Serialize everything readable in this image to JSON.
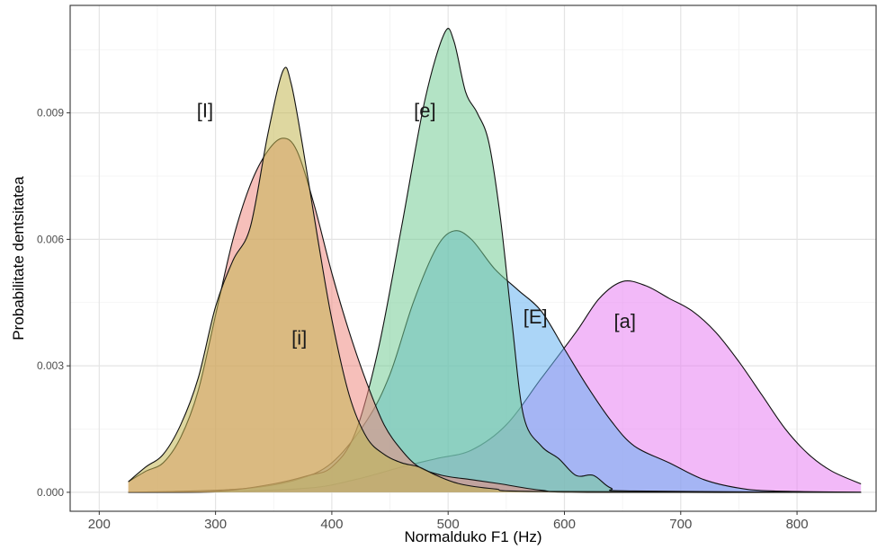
{
  "chart_data": {
    "type": "area",
    "title": "",
    "xlabel": "Normalduko F1 (Hz)",
    "ylabel": "Probabilitate dentsitatea",
    "xlim": [
      175,
      868
    ],
    "ylim": [
      -0.00045,
      0.01155
    ],
    "x_ticks": [
      200,
      300,
      400,
      500,
      600,
      700,
      800
    ],
    "x_tick_labels": [
      "200",
      "300",
      "400",
      "500",
      "600",
      "700",
      "800"
    ],
    "y_ticks": [
      0.0,
      0.003,
      0.006,
      0.009
    ],
    "y_tick_labels": [
      "0.000",
      "0.003",
      "0.006",
      "0.009"
    ],
    "grid": true,
    "legend": "none",
    "series": [
      {
        "name": "[a]",
        "color": "#e77ff2",
        "label_at": [
          652,
          0.0039
        ],
        "points": [
          [
            225,
            0.0
          ],
          [
            300,
            1e-05
          ],
          [
            380,
            0.0001
          ],
          [
            420,
            0.0003
          ],
          [
            460,
            0.0006
          ],
          [
            490,
            0.0008
          ],
          [
            520,
            0.001
          ],
          [
            550,
            0.0016
          ],
          [
            580,
            0.0027
          ],
          [
            610,
            0.0038
          ],
          [
            630,
            0.0046
          ],
          [
            650,
            0.005
          ],
          [
            670,
            0.0049
          ],
          [
            690,
            0.0046
          ],
          [
            710,
            0.0043
          ],
          [
            730,
            0.0038
          ],
          [
            750,
            0.0031
          ],
          [
            770,
            0.0023
          ],
          [
            790,
            0.0015
          ],
          [
            810,
            0.0009
          ],
          [
            830,
            0.0005
          ],
          [
            855,
            0.0002
          ]
        ]
      },
      {
        "name": "[E]",
        "color": "#66b3f0",
        "label_at": [
          575,
          0.004
        ],
        "points": [
          [
            225,
            0.0
          ],
          [
            280,
            3e-05
          ],
          [
            330,
            0.0001
          ],
          [
            370,
            0.0003
          ],
          [
            400,
            0.0007
          ],
          [
            430,
            0.0017
          ],
          [
            450,
            0.0028
          ],
          [
            470,
            0.0045
          ],
          [
            490,
            0.0058
          ],
          [
            505,
            0.0062
          ],
          [
            520,
            0.006
          ],
          [
            540,
            0.0053
          ],
          [
            560,
            0.0048
          ],
          [
            580,
            0.0043
          ],
          [
            600,
            0.0034
          ],
          [
            620,
            0.0025
          ],
          [
            640,
            0.0017
          ],
          [
            660,
            0.0011
          ],
          [
            690,
            0.0007
          ],
          [
            720,
            0.0003
          ],
          [
            750,
            0.0001
          ],
          [
            780,
            3e-05
          ],
          [
            855,
            0.0
          ]
        ]
      },
      {
        "name": "[e]",
        "color": "#74cc95",
        "label_at": [
          480,
          0.0089
        ],
        "points": [
          [
            225,
            0.0
          ],
          [
            300,
            2e-05
          ],
          [
            350,
            0.0002
          ],
          [
            380,
            0.0004
          ],
          [
            400,
            0.0006
          ],
          [
            420,
            0.0014
          ],
          [
            440,
            0.0034
          ],
          [
            460,
            0.0063
          ],
          [
            480,
            0.0093
          ],
          [
            497,
            0.0109
          ],
          [
            505,
            0.0107
          ],
          [
            515,
            0.0095
          ],
          [
            525,
            0.009
          ],
          [
            535,
            0.0083
          ],
          [
            545,
            0.0065
          ],
          [
            555,
            0.004
          ],
          [
            565,
            0.0018
          ],
          [
            580,
            0.0011
          ],
          [
            595,
            0.0008
          ],
          [
            610,
            0.0004
          ],
          [
            625,
            0.0004
          ],
          [
            640,
            0.0001
          ],
          [
            660,
            3e-05
          ],
          [
            855,
            0.0
          ]
        ]
      },
      {
        "name": "[i]",
        "color": "#ef8b82",
        "label_at": [
          372,
          0.0035
        ],
        "points": [
          [
            225,
            0.00025
          ],
          [
            240,
            0.0005
          ],
          [
            255,
            0.0007
          ],
          [
            270,
            0.0013
          ],
          [
            285,
            0.0024
          ],
          [
            300,
            0.0042
          ],
          [
            315,
            0.006
          ],
          [
            330,
            0.0073
          ],
          [
            345,
            0.0081
          ],
          [
            358,
            0.0084
          ],
          [
            370,
            0.0081
          ],
          [
            385,
            0.0068
          ],
          [
            400,
            0.0052
          ],
          [
            415,
            0.0038
          ],
          [
            430,
            0.0026
          ],
          [
            445,
            0.0016
          ],
          [
            460,
            0.001
          ],
          [
            475,
            0.0006
          ],
          [
            495,
            0.0004
          ],
          [
            520,
            0.0003
          ],
          [
            545,
            0.0002
          ],
          [
            580,
            5e-05
          ],
          [
            620,
            0.0
          ],
          [
            855,
            0.0
          ]
        ]
      },
      {
        "name": "[I]",
        "color": "#c2b752",
        "label_at": [
          291,
          0.0089
        ],
        "points": [
          [
            225,
            0.00025
          ],
          [
            240,
            0.0006
          ],
          [
            255,
            0.0009
          ],
          [
            270,
            0.0016
          ],
          [
            285,
            0.0027
          ],
          [
            300,
            0.0044
          ],
          [
            315,
            0.0055
          ],
          [
            330,
            0.0063
          ],
          [
            345,
            0.0085
          ],
          [
            358,
            0.01
          ],
          [
            365,
            0.0097
          ],
          [
            375,
            0.0082
          ],
          [
            388,
            0.006
          ],
          [
            400,
            0.0041
          ],
          [
            415,
            0.0023
          ],
          [
            430,
            0.0013
          ],
          [
            445,
            0.0009
          ],
          [
            460,
            0.0007
          ],
          [
            475,
            0.0006
          ],
          [
            490,
            0.0004
          ],
          [
            510,
            0.0002
          ],
          [
            540,
            8e-05
          ],
          [
            580,
            2e-05
          ],
          [
            855,
            0.0
          ]
        ]
      }
    ]
  }
}
